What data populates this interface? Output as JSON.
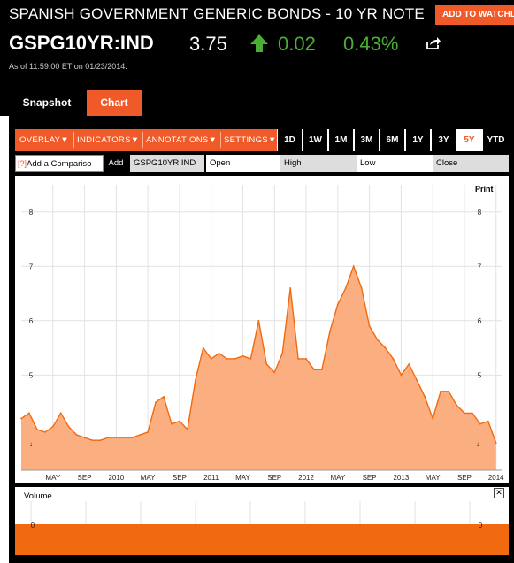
{
  "header": {
    "title": "SPANISH GOVERNMENT GENERIC BONDS - 10 YR NOTE",
    "add_to_watchlist": "ADD TO WATCHLIST",
    "ticker": "GSPG10YR:IND",
    "price": "3.75",
    "change": "0.02",
    "change_pct": "0.43%",
    "as_of": "As of 11:59:00 ET on 01/23/2014.",
    "up_color": "#4caf35"
  },
  "tabs": {
    "snapshot": "Snapshot",
    "chart": "Chart"
  },
  "toolbar": {
    "menus": [
      "OVERLAY",
      "INDICATORS",
      "ANNOTATIONS",
      "SETTINGS"
    ],
    "ranges": [
      "1D",
      "1W",
      "1M",
      "3M",
      "6M",
      "1Y",
      "3Y",
      "5Y",
      "YTD"
    ],
    "active_range": "5Y",
    "compare_placeholder": "Add a Compariso",
    "compare_help": "?",
    "add": "Add",
    "symbol": "GSPG10YR:IND",
    "fields": {
      "open": "Open",
      "high": "High",
      "low": "Low",
      "close": "Close"
    }
  },
  "chart_data": {
    "type": "area",
    "print_label": "Print",
    "y_ticks": [
      "8",
      "7",
      "6",
      "5"
    ],
    "ylim": [
      3.25,
      8.5
    ],
    "x_tick_labels": [
      "MAY",
      "SEP",
      "2010",
      "MAY",
      "SEP",
      "2011",
      "MAY",
      "SEP",
      "2012",
      "MAY",
      "SEP",
      "2013",
      "MAY",
      "SEP",
      "2014"
    ],
    "x_tick_dates": [
      "2009-05",
      "2009-09",
      "2010-01",
      "2010-05",
      "2010-09",
      "2011-01",
      "2011-05",
      "2011-09",
      "2012-01",
      "2012-05",
      "2012-09",
      "2013-01",
      "2013-05",
      "2013-09",
      "2014-01"
    ],
    "x": [
      "2009-01",
      "2009-02",
      "2009-03",
      "2009-04",
      "2009-05",
      "2009-06",
      "2009-07",
      "2009-08",
      "2009-09",
      "2009-10",
      "2009-11",
      "2009-12",
      "2010-01",
      "2010-02",
      "2010-03",
      "2010-04",
      "2010-05",
      "2010-06",
      "2010-07",
      "2010-08",
      "2010-09",
      "2010-10",
      "2010-11",
      "2010-12",
      "2011-01",
      "2011-02",
      "2011-03",
      "2011-04",
      "2011-05",
      "2011-06",
      "2011-07",
      "2011-08",
      "2011-09",
      "2011-10",
      "2011-11",
      "2011-12",
      "2012-01",
      "2012-02",
      "2012-03",
      "2012-04",
      "2012-05",
      "2012-06",
      "2012-07",
      "2012-08",
      "2012-09",
      "2012-10",
      "2012-11",
      "2012-12",
      "2013-01",
      "2013-02",
      "2013-03",
      "2013-04",
      "2013-05",
      "2013-06",
      "2013-07",
      "2013-08",
      "2013-09",
      "2013-10",
      "2013-11",
      "2013-12",
      "2014-01"
    ],
    "series": [
      {
        "values": [
          4.2,
          4.3,
          4.0,
          3.95,
          4.05,
          4.3,
          4.05,
          3.9,
          3.85,
          3.8,
          3.8,
          3.85,
          3.85,
          3.85,
          3.85,
          3.9,
          3.95,
          4.5,
          4.6,
          4.1,
          4.15,
          4.0,
          4.9,
          5.5,
          5.3,
          5.4,
          5.3,
          5.3,
          5.35,
          5.3,
          6.0,
          5.2,
          5.05,
          5.4,
          6.6,
          5.3,
          5.3,
          5.1,
          5.1,
          5.8,
          6.3,
          6.6,
          7.0,
          6.6,
          5.9,
          5.65,
          5.5,
          5.3,
          5.0,
          5.2,
          4.9,
          4.6,
          4.2,
          4.7,
          4.7,
          4.45,
          4.3,
          4.3,
          4.1,
          4.15,
          3.75
        ],
        "color": "#f26a10",
        "fill": "#fbae7f"
      }
    ],
    "volume": {
      "label": "Volume",
      "tick": "0",
      "values": [
        0
      ],
      "color": "#f26a10",
      "close": "✕"
    }
  }
}
